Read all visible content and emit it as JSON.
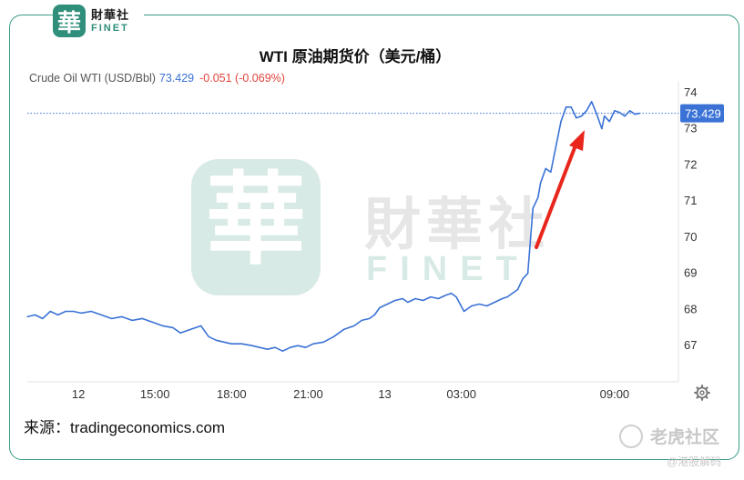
{
  "logo": {
    "mark": "華",
    "cn": "財華社",
    "en": "FINET"
  },
  "title": "WTI 原油期货价（美元/桶）",
  "header": {
    "instrument": "Crude Oil WTI (USD/Bbl)",
    "price": "73.429",
    "change": "-0.051 (-0.069%)"
  },
  "watermark": {
    "mark": "華",
    "cn": "財華社",
    "en": "FINET"
  },
  "source": "来源：tradingeconomics.com",
  "brand_secondary": "老虎社区",
  "brand_tertiary": "@港股解码",
  "last_price_label": "73.429",
  "colors": {
    "line": "#3a72d6",
    "arrow": "#e8261c",
    "frame": "#3a9a86",
    "price_tag": "#3a72d6",
    "change": "#e0443c"
  },
  "icons": {
    "settings": "gear-icon",
    "annotation": "red-arrow-icon",
    "logo": "finet-logo-icon"
  },
  "chart_data": {
    "type": "line",
    "title": "WTI 原油期货价（美元/桶）",
    "xlabel": "",
    "ylabel": "",
    "x_ticks": [
      {
        "label": "12",
        "t": 3.0
      },
      {
        "label": "15:00",
        "t": 6.0
      },
      {
        "label": "18:00",
        "t": 9.0
      },
      {
        "label": "21:00",
        "t": 12.0
      },
      {
        "label": "13",
        "t": 15.0
      },
      {
        "label": "03:00",
        "t": 18.0
      },
      {
        "label": "09:00",
        "t": 24.0
      }
    ],
    "y_ticks": [
      67,
      68,
      69,
      70,
      71,
      72,
      73,
      74
    ],
    "ylim": [
      66,
      74.5
    ],
    "xlim": [
      1.0,
      26.5
    ],
    "grid": false,
    "last_price": 73.429,
    "series": [
      {
        "x": [
          1.0,
          1.3,
          1.6,
          1.9,
          2.2,
          2.5,
          2.8,
          3.1,
          3.5,
          3.9,
          4.3,
          4.7,
          5.1,
          5.5,
          5.9,
          6.3,
          6.7,
          7.0,
          7.4,
          7.8,
          8.1,
          8.4,
          8.7,
          9.0,
          9.4,
          9.8,
          10.1,
          10.4,
          10.7,
          11.0,
          11.3,
          11.6,
          11.9,
          12.2,
          12.6,
          13.0,
          13.4,
          13.8,
          14.1,
          14.4,
          14.6,
          14.8,
          15.1,
          15.4,
          15.7,
          15.9,
          16.2,
          16.5,
          16.8,
          17.1,
          17.4,
          17.6,
          17.8,
          18.1,
          18.4,
          18.7,
          19.0,
          19.3,
          19.6,
          19.8,
          20.0,
          20.2,
          20.4,
          20.6,
          20.8,
          21.0,
          21.1,
          21.3,
          21.5,
          21.7,
          21.9,
          22.1,
          22.3,
          22.5,
          22.7,
          22.9,
          23.1,
          23.3,
          23.5,
          23.6,
          23.8,
          24.0,
          24.2,
          24.4,
          24.6,
          24.8,
          25.0
        ],
        "y": [
          67.8,
          67.85,
          67.75,
          67.95,
          67.85,
          67.95,
          67.95,
          67.9,
          67.95,
          67.85,
          67.75,
          67.8,
          67.7,
          67.75,
          67.65,
          67.55,
          67.5,
          67.35,
          67.45,
          67.55,
          67.25,
          67.15,
          67.1,
          67.05,
          67.05,
          67.0,
          66.95,
          66.9,
          66.95,
          66.85,
          66.95,
          67.0,
          66.95,
          67.05,
          67.1,
          67.25,
          67.45,
          67.55,
          67.7,
          67.75,
          67.85,
          68.05,
          68.15,
          68.25,
          68.3,
          68.2,
          68.3,
          68.25,
          68.35,
          68.3,
          68.4,
          68.45,
          68.35,
          67.95,
          68.1,
          68.15,
          68.1,
          68.2,
          68.3,
          68.35,
          68.45,
          68.55,
          68.85,
          69.0,
          70.8,
          71.1,
          71.5,
          71.9,
          71.8,
          72.5,
          73.2,
          73.6,
          73.6,
          73.3,
          73.35,
          73.5,
          73.75,
          73.4,
          73.0,
          73.35,
          73.2,
          73.5,
          73.45,
          73.35,
          73.5,
          73.4,
          73.43
        ]
      }
    ]
  }
}
